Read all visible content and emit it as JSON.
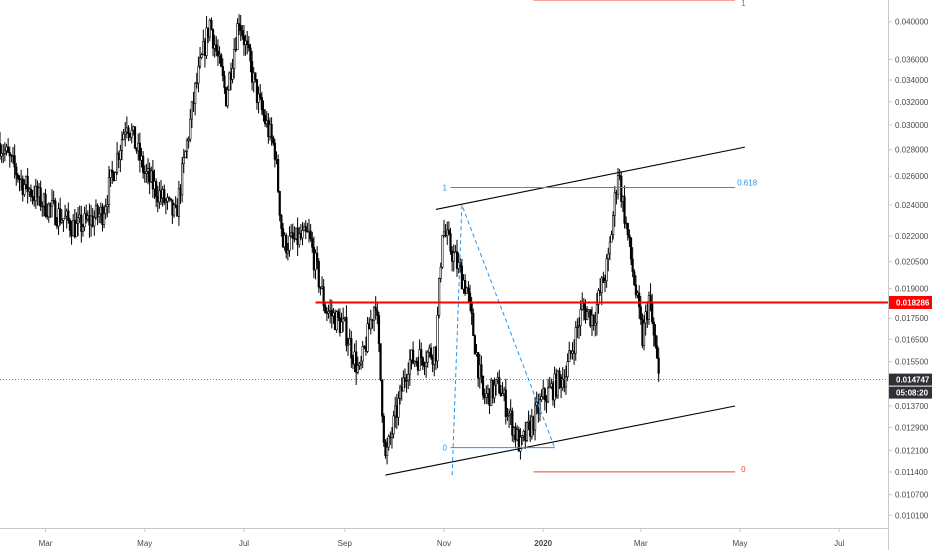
{
  "chart_data": {
    "type": "candlestick",
    "x_labels": [
      "Mar",
      "May",
      "Jul",
      "Sep",
      "Nov",
      "2020",
      "Mar",
      "May",
      "Jul"
    ],
    "y_ticks": [
      "0.040000",
      "0.036000",
      "0.034000",
      "0.032000",
      "0.030000",
      "0.028000",
      "0.026000",
      "0.024000",
      "0.022000",
      "0.020500",
      "0.019000",
      "0.017500",
      "0.016500",
      "0.015500",
      "0.013700",
      "0.012900",
      "0.012100",
      "0.011400",
      "0.010700",
      "0.010100"
    ],
    "y_tick_values": [
      0.04,
      0.036,
      0.034,
      0.032,
      0.03,
      0.028,
      0.026,
      0.024,
      0.022,
      0.0205,
      0.019,
      0.0175,
      0.0165,
      0.0155,
      0.0137,
      0.0129,
      0.0121,
      0.0114,
      0.0107,
      0.0101
    ],
    "ylim": [
      0.00975,
      0.0425
    ],
    "xlim": [
      "2019-02-01",
      "2020-07-31"
    ],
    "y_scale": "log",
    "horizontal_level": {
      "value": 0.018286,
      "label": "0.018286",
      "color": "#ff0000"
    },
    "last_price": {
      "value": 0.014747,
      "label": "0.014747",
      "countdown": "05:08:20"
    },
    "price_path": [
      [
        "2019-02-01",
        0.0285
      ],
      [
        "2019-02-15",
        0.0255
      ],
      [
        "2019-03-01",
        0.024
      ],
      [
        "2019-03-20",
        0.0225
      ],
      [
        "2019-04-05",
        0.0235
      ],
      [
        "2019-04-20",
        0.0305
      ],
      [
        "2019-05-01",
        0.0262
      ],
      [
        "2019-05-20",
        0.0232
      ],
      [
        "2019-06-01",
        0.033
      ],
      [
        "2019-06-10",
        0.04
      ],
      [
        "2019-06-20",
        0.0325
      ],
      [
        "2019-06-28",
        0.0405
      ],
      [
        "2019-07-10",
        0.032
      ],
      [
        "2019-07-20",
        0.028
      ],
      [
        "2019-07-25",
        0.0215
      ],
      [
        "2019-08-10",
        0.022
      ],
      [
        "2019-08-20",
        0.018
      ],
      [
        "2019-09-01",
        0.017
      ],
      [
        "2019-09-10",
        0.015
      ],
      [
        "2019-09-20",
        0.0185
      ],
      [
        "2019-09-26",
        0.0118
      ],
      [
        "2019-10-10",
        0.0155
      ],
      [
        "2019-10-27",
        0.016
      ],
      [
        "2019-10-31",
        0.0225
      ],
      [
        "2019-11-15",
        0.019
      ],
      [
        "2019-11-25",
        0.014
      ],
      [
        "2019-12-05",
        0.0145
      ],
      [
        "2019-12-18",
        0.0122
      ],
      [
        "2020-01-01",
        0.014
      ],
      [
        "2020-01-15",
        0.015
      ],
      [
        "2020-01-25",
        0.018
      ],
      [
        "2020-02-01",
        0.0175
      ],
      [
        "2020-02-10",
        0.0205
      ],
      [
        "2020-02-16",
        0.0265
      ],
      [
        "2020-02-25",
        0.02
      ],
      [
        "2020-03-02",
        0.0165
      ],
      [
        "2020-03-06",
        0.0185
      ],
      [
        "2020-03-10",
        0.016
      ],
      [
        "2020-03-12",
        0.0148
      ]
    ],
    "channel_upper": [
      [
        "2019-10-27",
        0.0237
      ],
      [
        "2020-05-04",
        0.0282
      ]
    ],
    "channel_lower": [
      [
        "2019-09-26",
        0.0113
      ],
      [
        "2020-04-28",
        0.0137
      ]
    ],
    "abcd_pattern": [
      [
        "2019-11-06",
        0.0113
      ],
      [
        "2019-11-12",
        0.024
      ],
      [
        "2020-01-08",
        0.0122
      ]
    ],
    "fib_retracement_upper": {
      "x_start": "2019-11-05",
      "x_end": "2020-04-28",
      "levels": [
        {
          "label": "1",
          "value": 0.0252,
          "color": "#2196f3"
        }
      ],
      "right_label": "0.618"
    },
    "fib_extension": {
      "x_start": "2019-12-26",
      "x_end": "2020-04-28",
      "levels": [
        {
          "label": "1",
          "value": 0.0425,
          "color": "#f44336"
        },
        {
          "label": "0",
          "value": 0.0114,
          "color": "#f44336"
        }
      ]
    },
    "fib_retracement_lower": {
      "x_start": "2019-11-05",
      "x_end": "2020-01-08",
      "levels": [
        {
          "label": "0",
          "value": 0.0122,
          "color": "#2196f3"
        }
      ]
    }
  }
}
